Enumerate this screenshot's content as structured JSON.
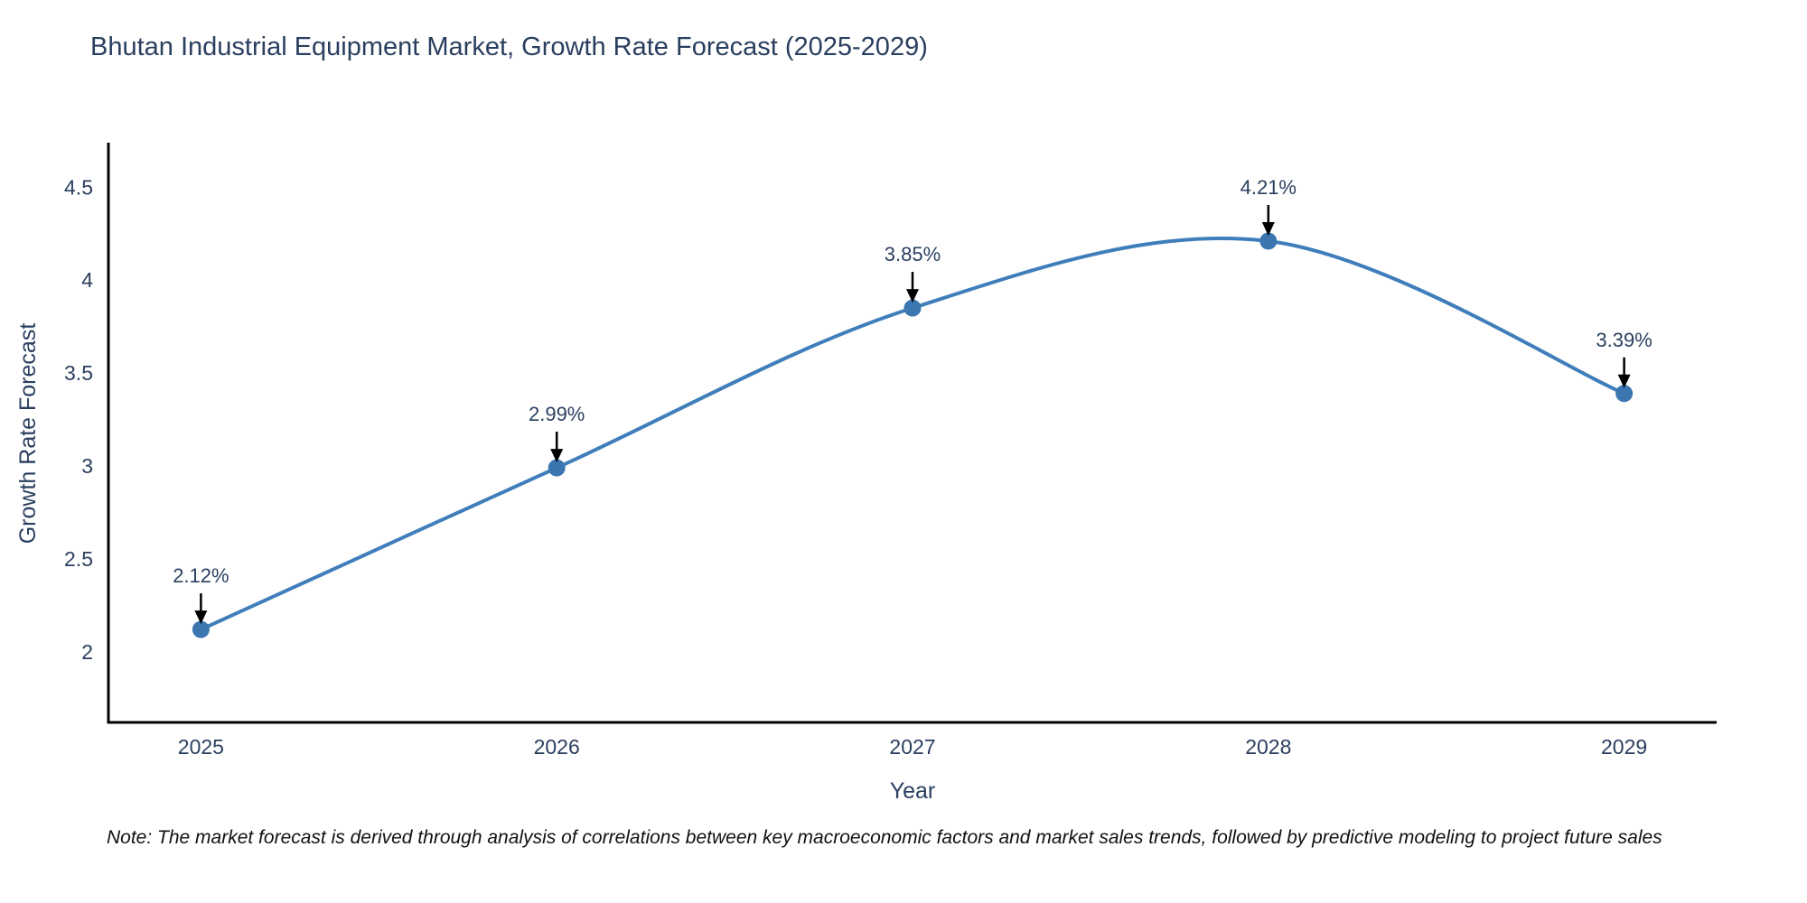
{
  "title": "Bhutan Industrial Equipment Market, Growth Rate Forecast (2025-2029)",
  "note": "Note: The market forecast is derived through analysis of correlations between key macroeconomic factors and market sales trends, followed by predictive modeling to project future sales",
  "chart_data": {
    "type": "line",
    "curve": "spline",
    "x": [
      2025,
      2026,
      2027,
      2028,
      2029
    ],
    "values": [
      2.12,
      2.99,
      3.85,
      4.21,
      3.39
    ],
    "point_labels": [
      "2.12%",
      "2.99%",
      "3.85%",
      "4.21%",
      "3.39%"
    ],
    "title": "Bhutan Industrial Equipment Market, Growth Rate Forecast (2025-2029)",
    "xlabel": "Year",
    "ylabel": "Growth Rate Forecast",
    "xticks": [
      2025,
      2026,
      2027,
      2028,
      2029
    ],
    "yticks": [
      2,
      2.5,
      3,
      3.5,
      4,
      4.5
    ],
    "xlim": [
      2024.74,
      2029.26
    ],
    "ylim": [
      1.62,
      4.73
    ],
    "grid": false,
    "legend": false,
    "line_color": "#3f7ebb",
    "marker_color": "#3b76b0",
    "axis_color": "#000000",
    "text_color": "#2a3f5f",
    "annotation_color": "#2a3f5f",
    "annotation_arrow_color": "#000000"
  }
}
